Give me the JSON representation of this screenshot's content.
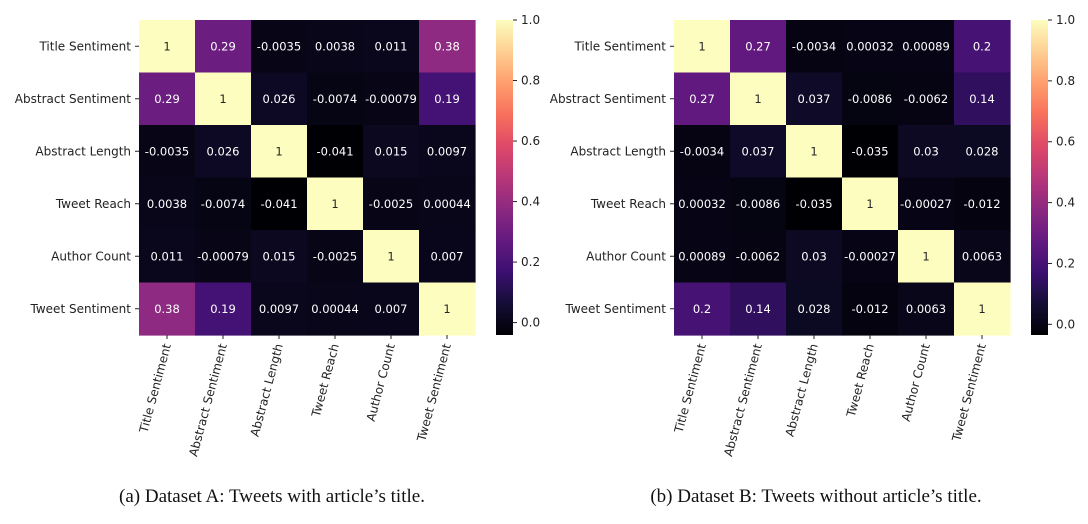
{
  "chart_data": [
    {
      "type": "heatmap",
      "caption": "(a) Dataset A: Tweets with article’s title.",
      "rows": [
        "Title Sentiment",
        "Abstract Sentiment",
        "Abstract Length",
        "Tweet Reach",
        "Author Count",
        "Tweet Sentiment"
      ],
      "columns": [
        "Title Sentiment",
        "Abstract Sentiment",
        "Abstract Length",
        "Tweet Reach",
        "Author Count",
        "Tweet Sentiment"
      ],
      "values": [
        [
          1,
          0.29,
          -0.0035,
          0.0038,
          0.011,
          0.38
        ],
        [
          0.29,
          1,
          0.026,
          -0.0074,
          -0.00079,
          0.19
        ],
        [
          -0.0035,
          0.026,
          1,
          -0.041,
          0.015,
          0.0097
        ],
        [
          0.0038,
          -0.0074,
          -0.041,
          1,
          -0.0025,
          0.00044
        ],
        [
          0.011,
          -0.00079,
          0.015,
          -0.0025,
          1,
          0.007
        ],
        [
          0.38,
          0.19,
          0.0097,
          0.00044,
          0.007,
          1
        ]
      ],
      "labels": [
        [
          "1",
          "0.29",
          "-0.0035",
          "0.0038",
          "0.011",
          "0.38"
        ],
        [
          "0.29",
          "1",
          "0.026",
          "-0.0074",
          "-0.00079",
          "0.19"
        ],
        [
          "-0.0035",
          "0.026",
          "1",
          "-0.041",
          "0.015",
          "0.0097"
        ],
        [
          "0.0038",
          "-0.0074",
          "-0.041",
          "1",
          "-0.0025",
          "0.00044"
        ],
        [
          "0.011",
          "-0.00079",
          "0.015",
          "-0.0025",
          "1",
          "0.007"
        ],
        [
          "0.38",
          "0.19",
          "0.0097",
          "0.00044",
          "0.007",
          "1"
        ]
      ],
      "colorbar": {
        "min": -0.041,
        "max": 1,
        "ticks": [
          0.0,
          0.2,
          0.4,
          0.6,
          0.8,
          1.0
        ],
        "tick_labels": [
          "0.0",
          "0.2",
          "0.4",
          "0.6",
          "0.8",
          "1.0"
        ]
      },
      "colormap": "magma"
    },
    {
      "type": "heatmap",
      "caption": "(b) Dataset B: Tweets without article’s title.",
      "rows": [
        "Title Sentiment",
        "Abstract Sentiment",
        "Abstract Length",
        "Tweet Reach",
        "Author Count",
        "Tweet Sentiment"
      ],
      "columns": [
        "Title Sentiment",
        "Abstract Sentiment",
        "Abstract Length",
        "Tweet Reach",
        "Author Count",
        "Tweet Sentiment"
      ],
      "values": [
        [
          1,
          0.27,
          -0.0034,
          0.00032,
          0.00089,
          0.2
        ],
        [
          0.27,
          1,
          0.037,
          -0.0086,
          -0.0062,
          0.14
        ],
        [
          -0.0034,
          0.037,
          1,
          -0.035,
          0.03,
          0.028
        ],
        [
          0.00032,
          -0.0086,
          -0.035,
          1,
          -0.00027,
          -0.012
        ],
        [
          0.00089,
          -0.0062,
          0.03,
          -0.00027,
          1,
          0.0063
        ],
        [
          0.2,
          0.14,
          0.028,
          -0.012,
          0.0063,
          1
        ]
      ],
      "labels": [
        [
          "1",
          "0.27",
          "-0.0034",
          "0.00032",
          "0.00089",
          "0.2"
        ],
        [
          "0.27",
          "1",
          "0.037",
          "-0.0086",
          "-0.0062",
          "0.14"
        ],
        [
          "-0.0034",
          "0.037",
          "1",
          "-0.035",
          "0.03",
          "0.028"
        ],
        [
          "0.00032",
          "-0.0086",
          "-0.035",
          "1",
          "-0.00027",
          "-0.012"
        ],
        [
          "0.00089",
          "-0.0062",
          "0.03",
          "-0.00027",
          "1",
          "0.0063"
        ],
        [
          "0.2",
          "0.14",
          "0.028",
          "-0.012",
          "0.0063",
          "1"
        ]
      ],
      "colorbar": {
        "min": -0.035,
        "max": 1,
        "ticks": [
          0.0,
          0.2,
          0.4,
          0.6,
          0.8,
          1.0
        ],
        "tick_labels": [
          "0.0",
          "0.2",
          "0.4",
          "0.6",
          "0.8",
          "1.0"
        ]
      },
      "colormap": "magma"
    }
  ]
}
